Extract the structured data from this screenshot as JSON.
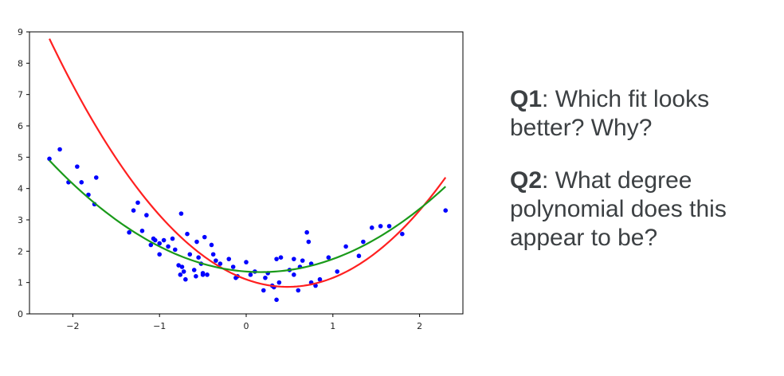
{
  "chart_data": {
    "type": "scatter",
    "xlim": [
      -2.5,
      2.5
    ],
    "ylim": [
      0,
      9
    ],
    "x_ticks": [
      {
        "value": -2,
        "label": "−2"
      },
      {
        "value": -1,
        "label": "−1"
      },
      {
        "value": 0,
        "label": "0"
      },
      {
        "value": 1,
        "label": "1"
      },
      {
        "value": 2,
        "label": "2"
      }
    ],
    "y_ticks": [
      {
        "value": 0,
        "label": "0"
      },
      {
        "value": 1,
        "label": "1"
      },
      {
        "value": 2,
        "label": "2"
      },
      {
        "value": 3,
        "label": "3"
      },
      {
        "value": 4,
        "label": "4"
      },
      {
        "value": 5,
        "label": "5"
      },
      {
        "value": 6,
        "label": "6"
      },
      {
        "value": 7,
        "label": "7"
      },
      {
        "value": 8,
        "label": "8"
      },
      {
        "value": 9,
        "label": "9"
      }
    ],
    "grid": false,
    "points": {
      "color": "#0000ff",
      "x": [
        -2.27,
        -2.15,
        -2.05,
        -1.95,
        -1.9,
        -1.82,
        -1.75,
        -1.73,
        -1.35,
        -1.3,
        -1.25,
        -1.2,
        -1.15,
        -1.1,
        -1.07,
        -1.05,
        -1.0,
        -1.0,
        -0.95,
        -0.9,
        -0.85,
        -0.82,
        -0.78,
        -0.76,
        -0.75,
        -0.74,
        -0.72,
        -0.7,
        -0.68,
        -0.65,
        -0.6,
        -0.58,
        -0.57,
        -0.55,
        -0.52,
        -0.5,
        -0.5,
        -0.48,
        -0.45,
        -0.4,
        -0.38,
        -0.35,
        -0.3,
        -0.2,
        -0.15,
        -0.12,
        -0.1,
        0.0,
        0.05,
        0.1,
        0.2,
        0.22,
        0.25,
        0.3,
        0.32,
        0.35,
        0.35,
        0.38,
        0.4,
        0.5,
        0.55,
        0.55,
        0.6,
        0.62,
        0.65,
        0.7,
        0.72,
        0.75,
        0.75,
        0.8,
        0.85,
        0.95,
        1.05,
        1.15,
        1.3,
        1.35,
        1.45,
        1.55,
        1.65,
        1.8,
        2.3
      ],
      "y": [
        4.95,
        5.25,
        4.2,
        4.7,
        4.2,
        3.8,
        3.5,
        4.35,
        2.6,
        3.3,
        3.55,
        2.65,
        3.15,
        2.2,
        2.4,
        2.35,
        2.25,
        1.9,
        2.35,
        2.15,
        2.4,
        2.05,
        1.55,
        1.25,
        3.2,
        1.5,
        1.35,
        1.1,
        2.55,
        1.9,
        1.4,
        1.2,
        2.3,
        1.8,
        1.6,
        1.3,
        1.25,
        2.45,
        1.25,
        2.2,
        1.9,
        1.7,
        1.6,
        1.75,
        1.5,
        1.15,
        1.2,
        1.65,
        1.25,
        1.35,
        0.75,
        1.15,
        1.3,
        0.9,
        0.85,
        1.75,
        0.45,
        1.0,
        1.8,
        1.4,
        1.25,
        1.75,
        0.75,
        1.5,
        1.7,
        2.6,
        2.3,
        1.6,
        1.0,
        0.9,
        1.1,
        1.8,
        1.35,
        2.15,
        1.85,
        2.3,
        2.75,
        2.8,
        2.8,
        2.55,
        3.3
      ]
    },
    "curves": [
      {
        "color": "#ff2020",
        "x_range": [
          -2.27,
          2.3
        ],
        "coefficients": [
          1.1,
          -1.0,
          1.05
        ]
      },
      {
        "color": "#1a9a1a",
        "x_range": [
          -2.27,
          2.3
        ],
        "coefficients": [
          1.35,
          -0.2,
          0.6
        ]
      }
    ]
  },
  "questions": [
    {
      "id": "Q1",
      "text": ": Which fit looks better? Why?"
    },
    {
      "id": "Q2",
      "text": ": What degree polynomial does this appear to be?"
    }
  ]
}
